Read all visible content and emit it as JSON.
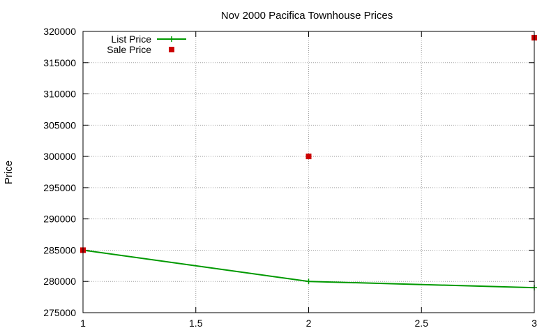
{
  "chart_data": {
    "type": "line",
    "title": "Nov 2000 Pacifica Townhouse Prices",
    "xlabel": "",
    "ylabel": "Price",
    "xlim": [
      1,
      3
    ],
    "ylim": [
      275000,
      320000
    ],
    "x_ticks": [
      1,
      1.5,
      2,
      2.5,
      3
    ],
    "x_tick_labels": [
      "1",
      "1.5",
      "2",
      "2.5",
      "3"
    ],
    "y_ticks": [
      275000,
      280000,
      285000,
      290000,
      295000,
      300000,
      305000,
      310000,
      315000,
      320000
    ],
    "y_tick_labels": [
      "275000",
      "280000",
      "285000",
      "290000",
      "295000",
      "300000",
      "305000",
      "310000",
      "315000",
      "320000"
    ],
    "grid": true,
    "legend_position": "top-left",
    "series": [
      {
        "name": "List Price",
        "style": "linespoints",
        "color": "#009900",
        "x": [
          1,
          2,
          3
        ],
        "y": [
          285000,
          280000,
          279000
        ]
      },
      {
        "name": "Sale Price",
        "style": "points",
        "color": "#cc0000",
        "x": [
          1,
          2,
          3
        ],
        "y": [
          285000,
          300000,
          319000
        ]
      }
    ]
  }
}
